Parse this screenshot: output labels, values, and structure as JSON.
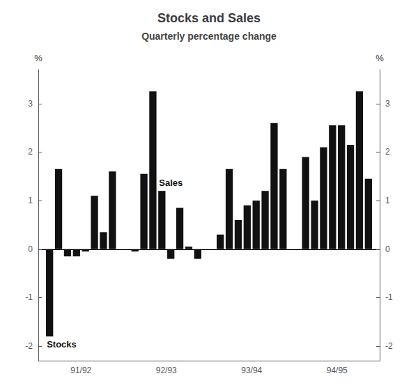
{
  "chart_data": {
    "type": "bar",
    "title": "Stocks and Sales",
    "subtitle": "Quarterly percentage change",
    "categories": [
      "91/92",
      "92/93",
      "93/94",
      "94/95"
    ],
    "series": [
      {
        "color": "#111111",
        "values": [
          -1.8,
          -0.05,
          0.3,
          1.9
        ]
      },
      {
        "color": "#111111",
        "values": [
          1.65,
          1.55,
          1.65,
          1.0
        ]
      },
      {
        "color": "#111111",
        "values": [
          -0.15,
          3.25,
          0.6,
          2.1
        ]
      },
      {
        "color": "#111111",
        "values": [
          -0.15,
          1.2,
          0.9,
          2.55
        ]
      },
      {
        "color": "#111111",
        "values": [
          -0.05,
          -0.2,
          1.0,
          2.55
        ]
      },
      {
        "color": "#111111",
        "values": [
          1.1,
          0.85,
          1.2,
          2.15
        ]
      },
      {
        "color": "#111111",
        "values": [
          0.35,
          0.05,
          2.6,
          3.25
        ]
      },
      {
        "color": "#111111",
        "values": [
          1.6,
          -0.2,
          1.65,
          1.45
        ]
      }
    ],
    "annotations": [
      "Stocks",
      "Sales"
    ],
    "ylabel": "%",
    "y2label": "%",
    "ylim": [
      -2.3,
      3.7
    ],
    "yticks": [
      -2,
      -1,
      0,
      1,
      2,
      3
    ],
    "y2lim": [
      -2.3,
      3.7
    ],
    "y2ticks": [
      -2,
      -1,
      0,
      1,
      2,
      3
    ],
    "grid": false
  }
}
